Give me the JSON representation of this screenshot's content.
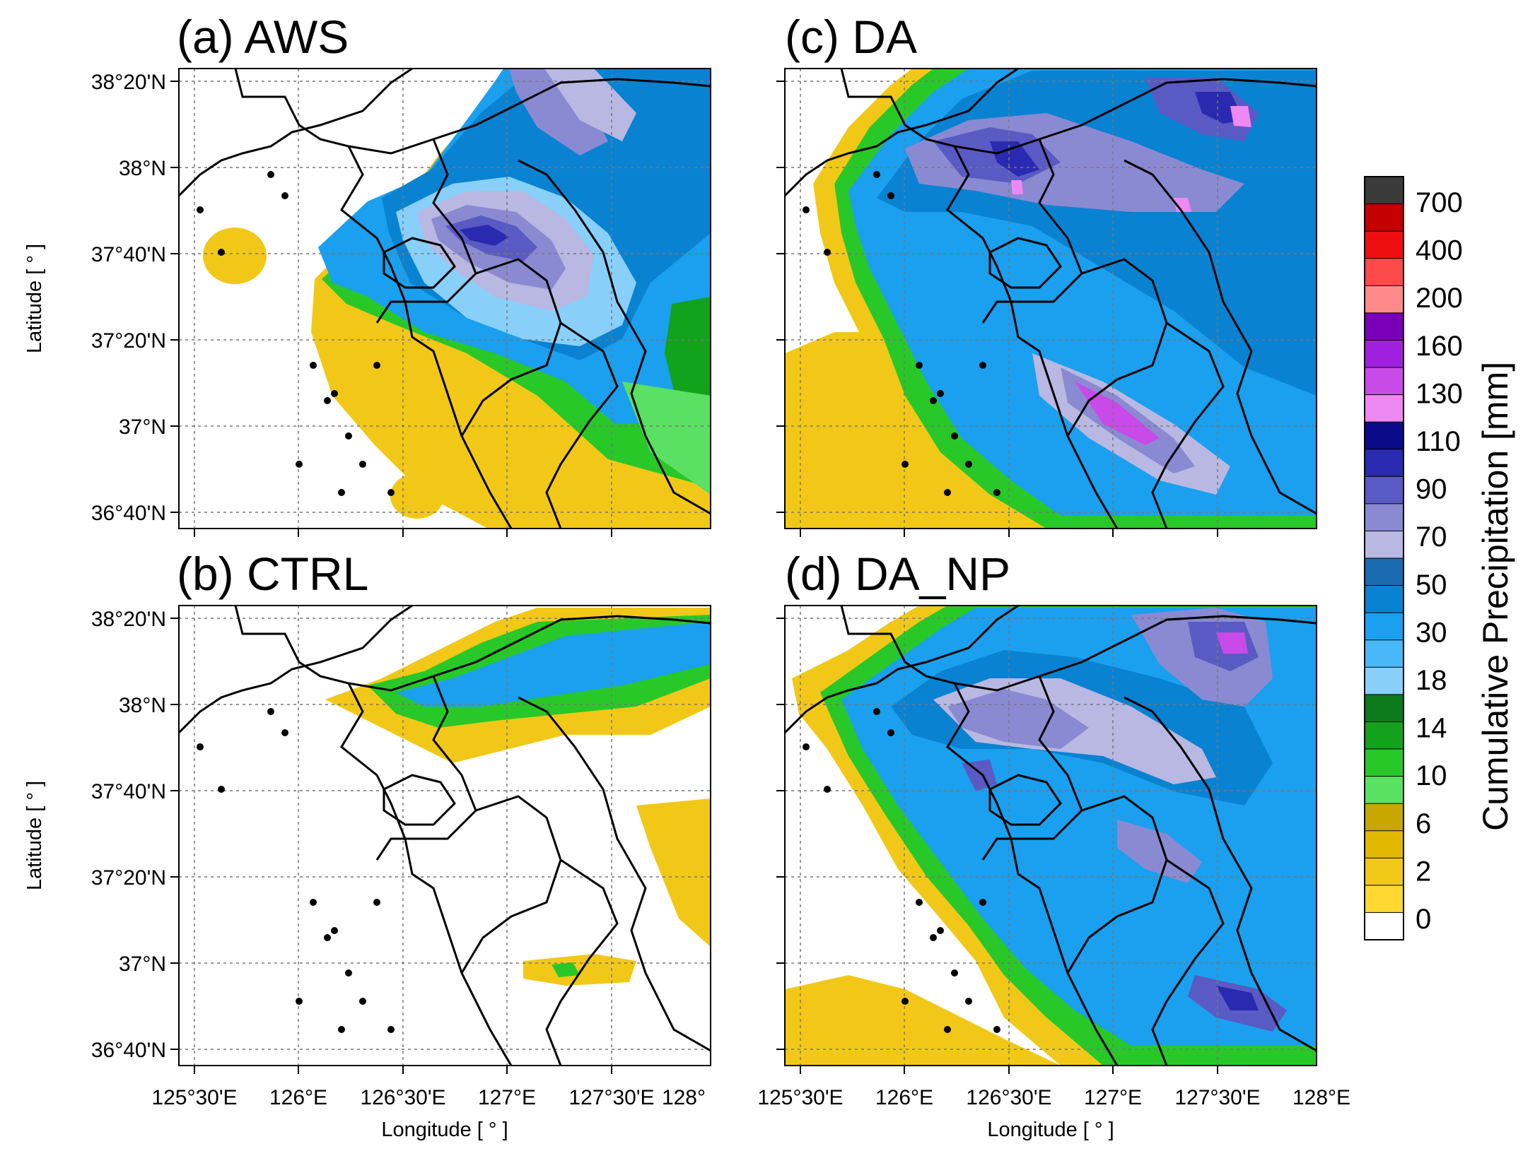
{
  "panels": [
    {
      "id": "a",
      "title": "(a) AWS"
    },
    {
      "id": "c",
      "title": "(c) DA"
    },
    {
      "id": "b",
      "title": "(b) CTRL"
    },
    {
      "id": "d",
      "title": "(d) DA_NP"
    }
  ],
  "axes": {
    "lat_ticks": [
      "38°20'N",
      "38°N",
      "37°40'N",
      "37°20'N",
      "37°N",
      "36°40'N"
    ],
    "lon_ticks_left": [
      "125°30'E",
      "126°E",
      "126°30'E",
      "127°E",
      "127°30'E",
      "128°"
    ],
    "lon_ticks_right": [
      "125°30'E",
      "126°E",
      "126°30'E",
      "127°E",
      "127°30'E",
      "128°E"
    ],
    "ylabel": "Latitude [ ° ]",
    "xlabel": "Longitude [ ° ]"
  },
  "colorbar": {
    "title": "Cumulative Precipitation [mm]",
    "labels": [
      "700",
      "400",
      "200",
      "160",
      "130",
      "110",
      "90",
      "70",
      "50",
      "30",
      "18",
      "14",
      "10",
      "6",
      "2",
      "0"
    ],
    "colors": [
      "#3a3a3a",
      "#c40000",
      "#ee1010",
      "#ff4a4a",
      "#ff8a8a",
      "#7a00b8",
      "#a020e0",
      "#c84ae8",
      "#ee88f2",
      "#0a0a88",
      "#2a2ab0",
      "#5a5ac4",
      "#8a8ad2",
      "#b8b8e2",
      "#1a6ab0",
      "#0a82d2",
      "#1aa0ee",
      "#48b8f8",
      "#88d0fa",
      "#0a7a1a",
      "#12a21c",
      "#28c828",
      "#5ae062",
      "#c8a800",
      "#e2b800",
      "#f2c818",
      "#ffd832",
      "#ffffff"
    ]
  }
}
